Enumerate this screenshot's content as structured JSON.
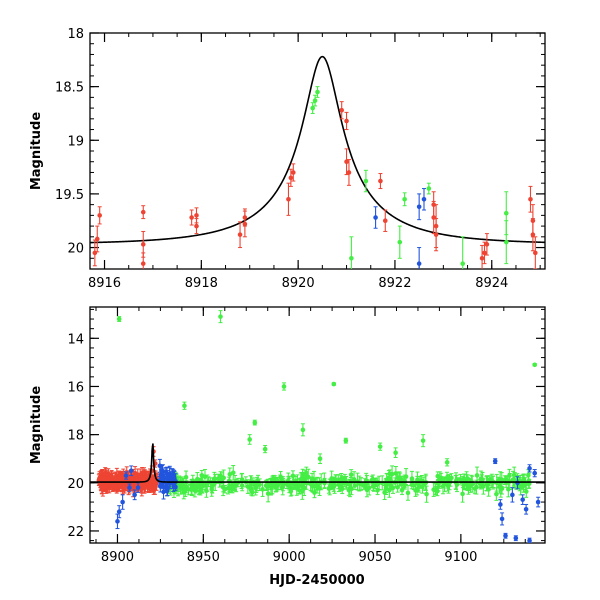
{
  "chart_data": [
    {
      "type": "scatter",
      "name": "zoom-panel",
      "ylabel": "Magnitude",
      "xlabel": "",
      "xlim": [
        8915.7,
        8925.1
      ],
      "ylim": [
        20.2,
        18.0
      ],
      "y_inverted": true,
      "x_ticks": [
        8916,
        8918,
        8920,
        8922,
        8924
      ],
      "y_ticks": [
        18,
        18.5,
        19,
        19.5,
        20
      ],
      "x_tick_labels": [
        "8916",
        "8918",
        "8920",
        "8922",
        "8924"
      ],
      "y_tick_labels": [
        "18",
        "18.5",
        "19",
        "19.5",
        "20"
      ],
      "model_curve": {
        "color": "#000000",
        "t0": 8920.5,
        "baseline": 19.97,
        "peak": 18.22,
        "u0": 0.19,
        "tE": 2.1
      },
      "series": [
        {
          "name": "red",
          "color": "#ee4433",
          "points": [
            [
              8915.8,
              20.05,
              0.12
            ],
            [
              8915.85,
              19.92,
              0.12
            ],
            [
              8915.9,
              19.7,
              0.08
            ],
            [
              8916.8,
              19.67,
              0.06
            ],
            [
              8916.8,
              19.97,
              0.12
            ],
            [
              8916.8,
              20.15,
              0.1
            ],
            [
              8917.8,
              19.72,
              0.07
            ],
            [
              8917.9,
              19.7,
              0.07
            ],
            [
              8917.9,
              19.8,
              0.07
            ],
            [
              8918.8,
              19.88,
              0.12
            ],
            [
              8918.9,
              19.78,
              0.12
            ],
            [
              8918.9,
              19.72,
              0.08
            ],
            [
              8919.8,
              19.55,
              0.15
            ],
            [
              8919.85,
              19.35,
              0.08
            ],
            [
              8919.9,
              19.3,
              0.08
            ],
            [
              8920.9,
              18.72,
              0.08
            ],
            [
              8921.0,
              18.82,
              0.08
            ],
            [
              8921.0,
              19.2,
              0.12
            ],
            [
              8921.05,
              19.3,
              0.12
            ],
            [
              8921.7,
              19.38,
              0.07
            ],
            [
              8921.8,
              19.75,
              0.1
            ],
            [
              8922.8,
              19.6,
              0.12
            ],
            [
              8922.8,
              19.72,
              0.15
            ],
            [
              8922.85,
              19.8,
              0.2
            ],
            [
              8922.85,
              19.88,
              0.15
            ],
            [
              8923.8,
              20.1,
              0.12
            ],
            [
              8923.85,
              20.05,
              0.1
            ],
            [
              8923.9,
              19.97,
              0.1
            ],
            [
              8924.8,
              19.55,
              0.12
            ],
            [
              8924.85,
              19.75,
              0.15
            ],
            [
              8924.85,
              19.88,
              0.15
            ],
            [
              8924.9,
              20.05,
              0.15
            ]
          ]
        },
        {
          "name": "green",
          "color": "#44ee44",
          "points": [
            [
              8920.3,
              18.7,
              0.05
            ],
            [
              8920.35,
              18.63,
              0.05
            ],
            [
              8920.4,
              18.55,
              0.05
            ],
            [
              8921.4,
              19.38,
              0.1
            ],
            [
              8921.1,
              20.1,
              0.2
            ],
            [
              8922.1,
              19.95,
              0.15
            ],
            [
              8922.2,
              19.55,
              0.06
            ],
            [
              8922.7,
              19.45,
              0.05
            ],
            [
              8923.4,
              20.15,
              0.25
            ],
            [
              8924.3,
              19.68,
              0.2
            ],
            [
              8924.3,
              19.95,
              0.2
            ]
          ]
        },
        {
          "name": "blue",
          "color": "#2255dd",
          "points": [
            [
              8921.6,
              19.72,
              0.1
            ],
            [
              8922.5,
              19.62,
              0.12
            ],
            [
              8922.6,
              19.55,
              0.1
            ],
            [
              8922.5,
              20.15,
              0.15
            ]
          ]
        }
      ]
    },
    {
      "type": "scatter",
      "name": "full-panel",
      "ylabel": "Magnitude",
      "xlabel": "HJD-2450000",
      "xlim": [
        8884,
        9149
      ],
      "ylim": [
        22.5,
        12.7
      ],
      "y_inverted": true,
      "x_ticks": [
        8900,
        8950,
        9000,
        9050,
        9100
      ],
      "y_ticks": [
        14,
        16,
        18,
        20,
        22
      ],
      "x_tick_labels": [
        "8900",
        "8950",
        "9000",
        "9050",
        "9100"
      ],
      "y_tick_labels": [
        "14",
        "16",
        "18",
        "20",
        "22"
      ],
      "baseline": 19.97,
      "model_curve": {
        "color": "#000000",
        "t0": 8920.5,
        "baseline": 19.97,
        "peak": 18.22,
        "u0": 0.19,
        "tE": 2.1
      },
      "series": [
        {
          "name": "green",
          "color": "#44ee44",
          "cluster": {
            "t_start": 8928,
            "t_end": 9140,
            "count": 360,
            "mag_center": 20.05,
            "mag_spread": 0.35,
            "err": 0.25,
            "seed": 7
          },
          "points": [
            [
              8901,
              13.2,
              0.1
            ],
            [
              8960,
              13.1,
              0.25
            ],
            [
              8939,
              16.8,
              0.15
            ],
            [
              8997,
              16.0,
              0.15
            ],
            [
              8980,
              17.5,
              0.1
            ],
            [
              8977,
              18.2,
              0.2
            ],
            [
              9008,
              17.8,
              0.25
            ],
            [
              9026,
              15.9,
              0.05
            ],
            [
              9143,
              15.1,
              0.05
            ],
            [
              8986,
              18.6,
              0.15
            ],
            [
              9033,
              18.25,
              0.1
            ],
            [
              9053,
              18.5,
              0.15
            ],
            [
              9062,
              18.75,
              0.2
            ],
            [
              9078,
              18.25,
              0.25
            ],
            [
              9092,
              19.15,
              0.15
            ],
            [
              9010,
              19.6,
              0.25
            ],
            [
              9018,
              19.0,
              0.2
            ]
          ]
        },
        {
          "name": "red",
          "color": "#ee4433",
          "cluster": {
            "t_start": 8889,
            "t_end": 8923,
            "count": 260,
            "mag_center": 19.95,
            "mag_spread": 0.3,
            "err": 0.22,
            "seed": 3
          },
          "points": [
            [
              8921,
              18.7,
              0.2
            ],
            [
              8922,
              19.2,
              0.15
            ],
            [
              8920,
              19.5,
              0.2
            ]
          ]
        },
        {
          "name": "blue",
          "color": "#2255dd",
          "cluster": {
            "t_start": 8924,
            "t_end": 8934,
            "count": 45,
            "mag_center": 19.9,
            "mag_spread": 0.45,
            "err": 0.25,
            "seed": 11
          },
          "points": [
            [
              8900,
              21.6,
              0.3
            ],
            [
              8901,
              21.2,
              0.25
            ],
            [
              8903,
              20.8,
              0.3
            ],
            [
              8908,
              19.5,
              0.2
            ],
            [
              8910,
              20.5,
              0.2
            ],
            [
              8912,
              20.2,
              0.2
            ],
            [
              8905,
              19.7,
              0.15
            ],
            [
              8907,
              20.2,
              0.15
            ],
            [
              9120,
              19.1,
              0.1
            ],
            [
              9123,
              20.9,
              0.2
            ],
            [
              9124,
              21.5,
              0.25
            ],
            [
              9126,
              22.2,
              0.1
            ],
            [
              9130,
              20.5,
              0.3
            ],
            [
              9133,
              20.0,
              0.25
            ],
            [
              9136,
              20.7,
              0.2
            ],
            [
              9138,
              21.1,
              0.2
            ],
            [
              9140,
              19.4,
              0.15
            ],
            [
              9143,
              19.6,
              0.15
            ],
            [
              9145,
              20.8,
              0.2
            ],
            [
              9132,
              22.3,
              0.1
            ],
            [
              9140,
              22.4,
              0.1
            ]
          ]
        }
      ]
    }
  ]
}
